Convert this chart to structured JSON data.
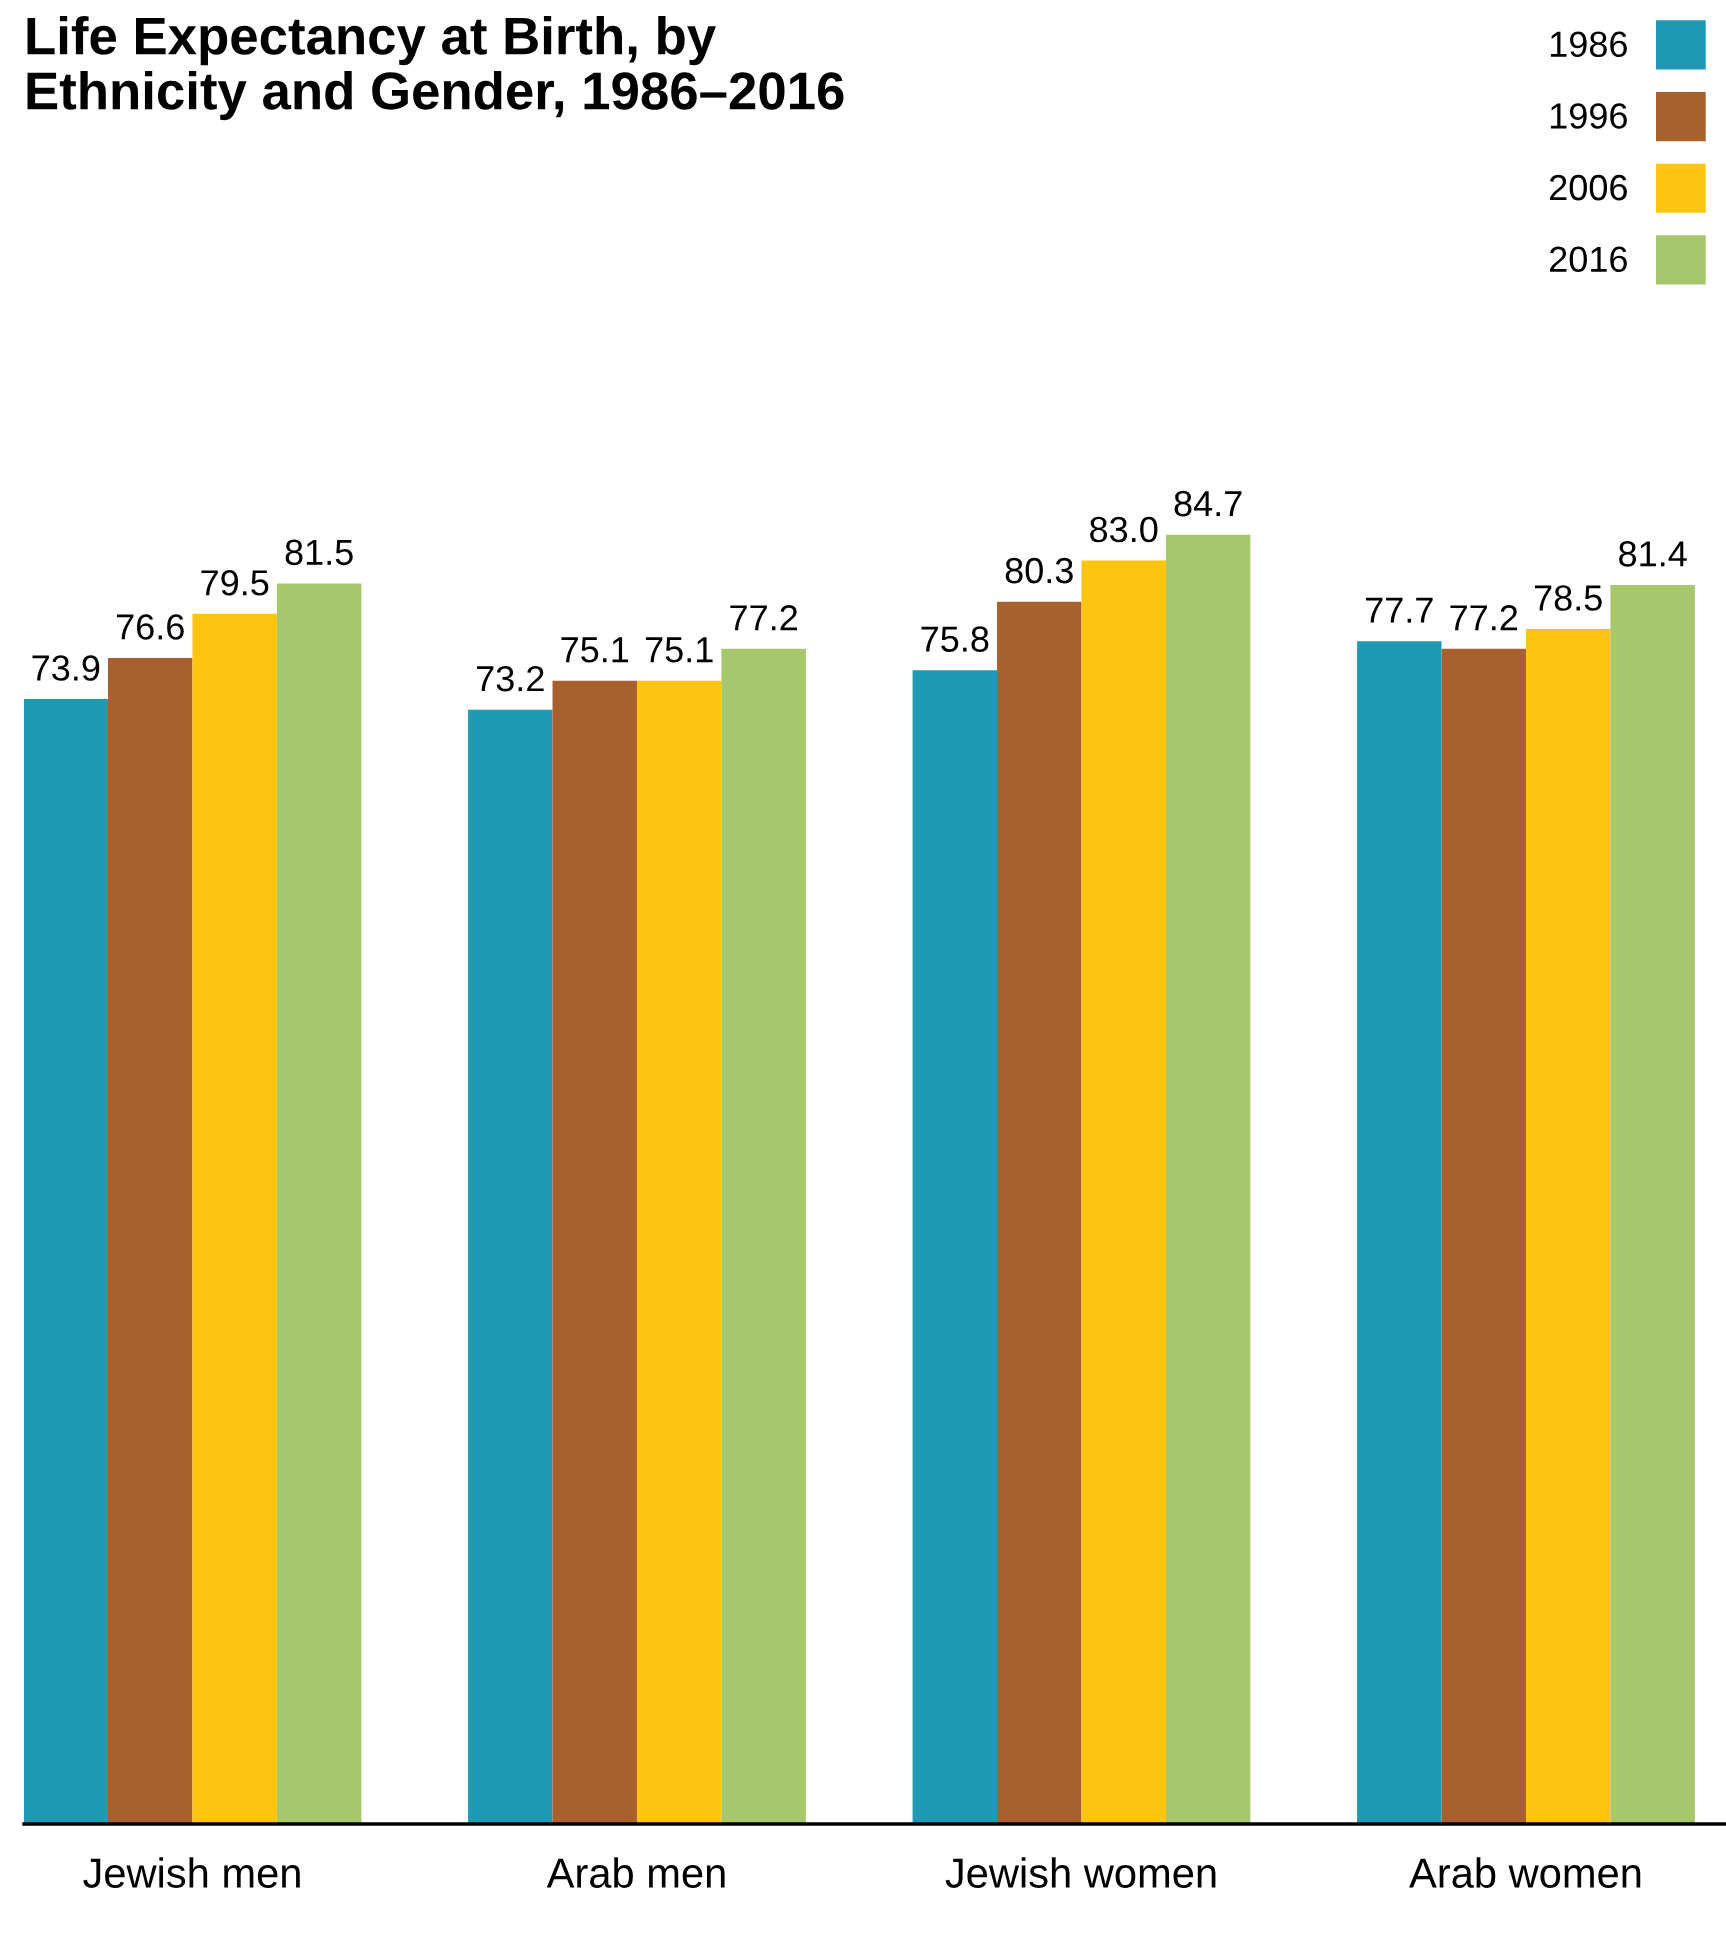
{
  "chart_data": {
    "type": "bar",
    "title": "Life Expectancy at Birth, by\nEthnicity and Gender, 1986–2016",
    "categories": [
      "Jewish men",
      "Arab men",
      "Jewish women",
      "Arab women"
    ],
    "series": [
      {
        "name": "1986",
        "color": "#1f99b4",
        "values": [
          73.9,
          73.2,
          75.8,
          77.7
        ],
        "value_labels": [
          "73.9",
          "73.2",
          "75.8",
          "77.7"
        ]
      },
      {
        "name": "1996",
        "color": "#a8612e",
        "values": [
          76.6,
          75.1,
          80.3,
          77.2
        ],
        "value_labels": [
          "76.6",
          "75.1",
          "80.3",
          "77.2"
        ]
      },
      {
        "name": "2006",
        "color": "#fdc510",
        "values": [
          79.5,
          75.1,
          83.0,
          78.5
        ],
        "value_labels": [
          "79.5",
          "75.1",
          "83.0",
          "78.5"
        ]
      },
      {
        "name": "2016",
        "color": "#a6c76b",
        "values": [
          81.5,
          77.2,
          84.7,
          81.4
        ],
        "value_labels": [
          "81.5",
          "77.2",
          "84.7",
          "81.4"
        ]
      }
    ],
    "legend": "top right",
    "tick_labels": "x"
  }
}
